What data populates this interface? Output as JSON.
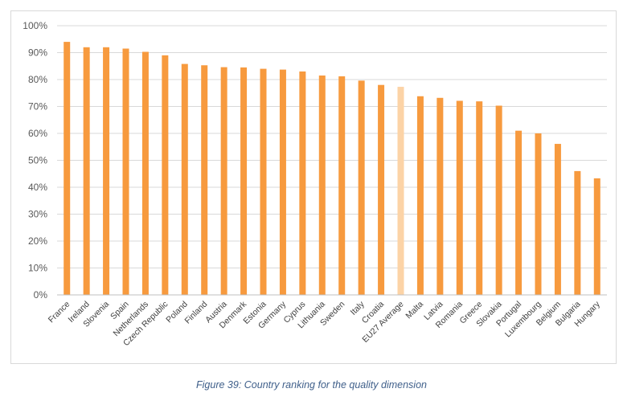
{
  "caption": "Figure 39: Country ranking for the quality dimension",
  "colors": {
    "bar": "#f79a3e",
    "highlight": "#fcd3a6",
    "grid": "#d9d9d9",
    "axis": "#bfbfbf"
  },
  "chart_data": {
    "type": "bar",
    "title": "",
    "xlabel": "",
    "ylabel": "",
    "ylim": [
      0,
      100
    ],
    "yticks": [
      "0%",
      "10%",
      "20%",
      "30%",
      "40%",
      "50%",
      "60%",
      "70%",
      "80%",
      "90%",
      "100%"
    ],
    "grid": true,
    "highlight_category": "EU27 Average",
    "categories": [
      "France",
      "Ireland",
      "Slovenia",
      "Spain",
      "Netherlands",
      "Czech Republic",
      "Poland",
      "Finland",
      "Austria",
      "Denmark",
      "Estonia",
      "Germany",
      "Cyprus",
      "Lithuania",
      "Sweden",
      "Italy",
      "Croatia",
      "EU27 Average",
      "Malta",
      "Latvia",
      "Romania",
      "Greece",
      "Slovakia",
      "Portugal",
      "Luxembourg",
      "Belgium",
      "Bulgaria",
      "Hungary"
    ],
    "values": [
      94,
      92,
      92,
      91.5,
      90.3,
      89,
      85.8,
      85.3,
      84.6,
      84.5,
      84,
      83.7,
      83,
      81.5,
      81.2,
      79.6,
      78,
      77.3,
      73.8,
      73.2,
      72.1,
      71.9,
      70.3,
      61,
      60,
      56.1,
      46,
      43.3
    ]
  }
}
